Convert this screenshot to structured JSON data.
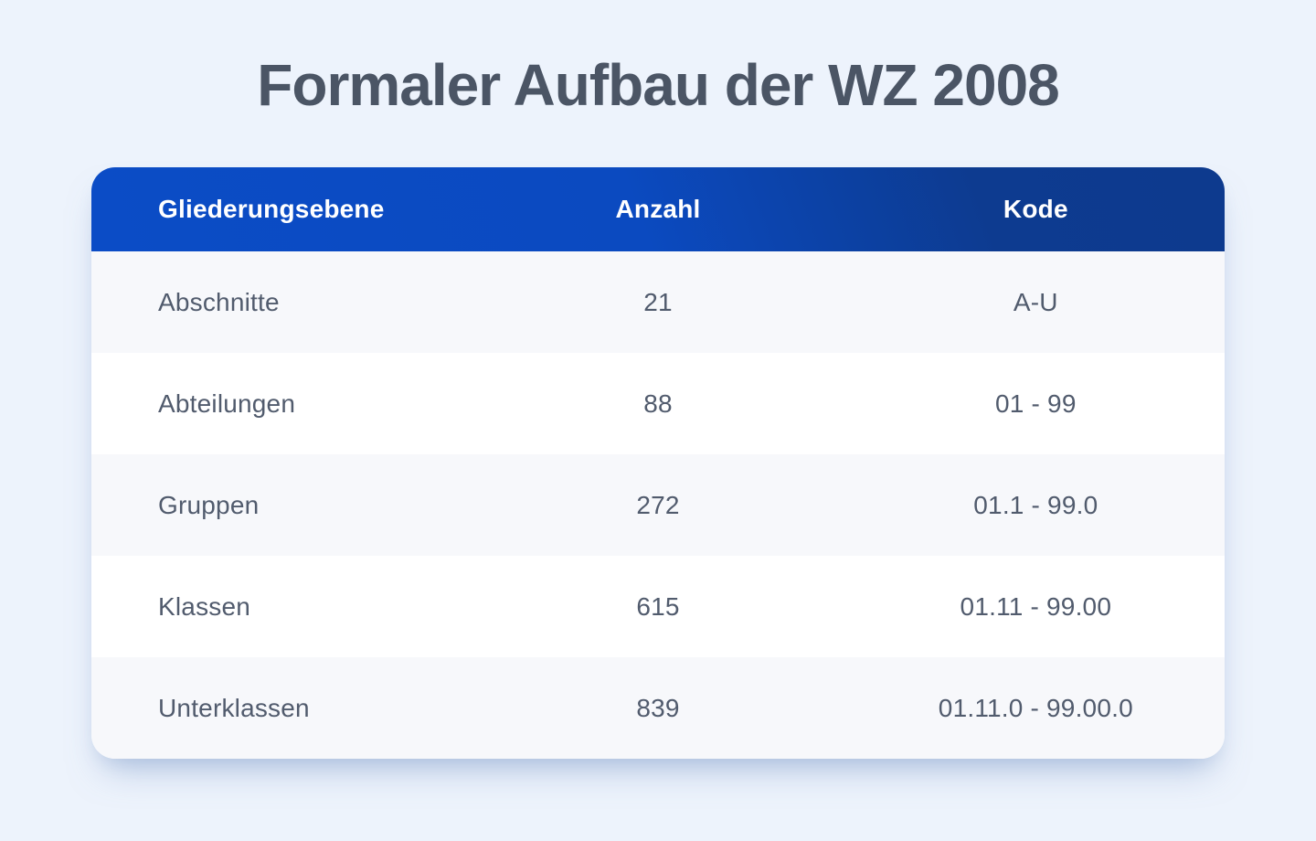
{
  "title": "Formaler Aufbau der WZ 2008",
  "colors": {
    "page_background": "#edf3fc",
    "header_gradient_start": "#0b4cc6",
    "header_gradient_end": "#0d3a8e",
    "header_text": "#ffffff",
    "row_stripe": "#f7f8fb",
    "row_plain": "#ffffff",
    "title_text": "#4b5565",
    "cell_text": "#515b6d"
  },
  "chart_data": {
    "type": "table",
    "title": "Formaler Aufbau der WZ 2008",
    "columns": [
      "Gliederungsebene",
      "Anzahl",
      "Kode"
    ],
    "rows": [
      [
        "Abschnitte",
        21,
        "A-U"
      ],
      [
        "Abteilungen",
        88,
        "01 - 99"
      ],
      [
        "Gruppen",
        272,
        "01.1 - 99.0"
      ],
      [
        "Klassen",
        615,
        "01.11 - 99.00"
      ],
      [
        "Unterklassen",
        839,
        "01.11.0 - 99.00.0"
      ]
    ]
  }
}
